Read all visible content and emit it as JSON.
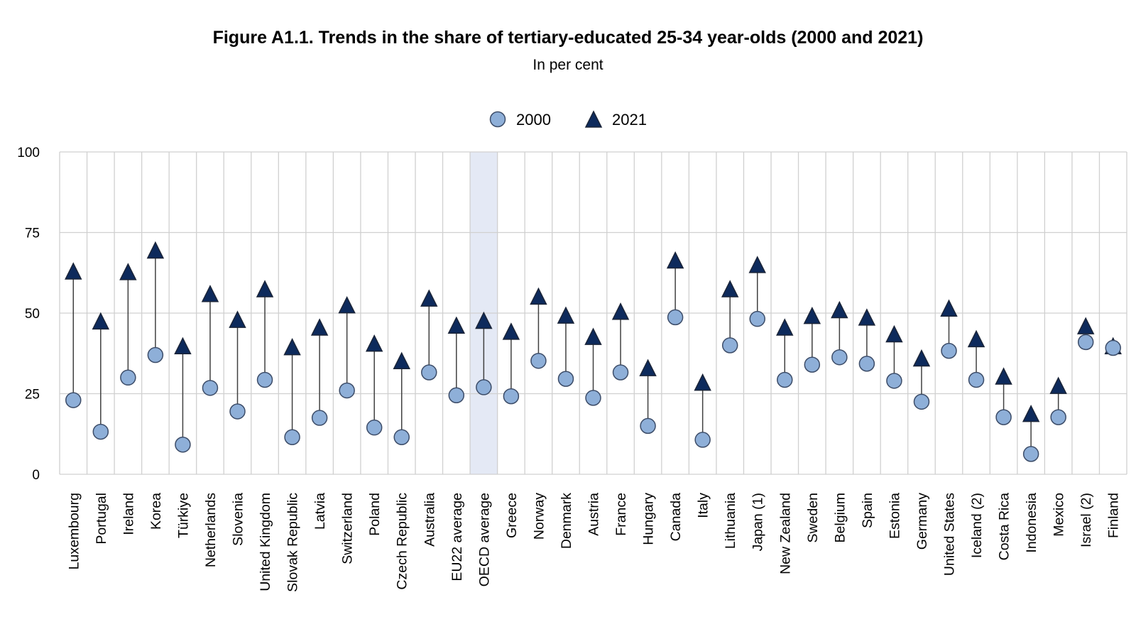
{
  "chart_data": {
    "type": "scatter",
    "title": "Figure A1.1. Trends in the share of tertiary-educated 25-34 year-olds (2000 and 2021)",
    "subtitle": "In per cent",
    "ylim": [
      0,
      100
    ],
    "yticks": [
      "0",
      "25",
      "50",
      "75",
      "100"
    ],
    "ytick_values": [
      0,
      25,
      50,
      75,
      100
    ],
    "grid": true,
    "legend_position": "top-center",
    "highlighted_category": "OECD average",
    "colors": {
      "marker_fill": "#8eafd8",
      "marker_edge": "#3c4c68",
      "triangle_fill": "#0d2a5c",
      "triangle_edge": "#1a2438",
      "connector": "#404040",
      "grid": "#d0d0d0",
      "highlight": "#e4e9f5"
    },
    "categories": [
      "Luxembourg",
      "Portugal",
      "Ireland",
      "Korea",
      "Türkiye",
      "Netherlands",
      "Slovenia",
      "United Kingdom",
      "Slovak Republic",
      "Latvia",
      "Switzerland",
      "Poland",
      "Czech Republic",
      "Australia",
      "EU22 average",
      "OECD average",
      "Greece",
      "Norway",
      "Denmark",
      "Austria",
      "France",
      "Hungary",
      "Canada",
      "Italy",
      "Lithuania",
      "Japan (1)",
      "New Zealand",
      "Sweden",
      "Belgium",
      "Spain",
      "Estonia",
      "Germany",
      "United States",
      "Iceland (2)",
      "Costa Rica",
      "Indonesia",
      "Mexico",
      "Israel (2)",
      "Finland"
    ],
    "series": [
      {
        "name": "2000",
        "marker": "circle",
        "values": [
          23.0,
          13.2,
          30.0,
          37.0,
          9.2,
          26.8,
          19.5,
          29.3,
          11.5,
          17.5,
          26.0,
          14.5,
          11.5,
          31.6,
          24.5,
          27.0,
          24.2,
          35.2,
          29.6,
          23.7,
          31.6,
          15.0,
          48.7,
          10.7,
          40.0,
          48.2,
          29.3,
          34.0,
          36.3,
          34.3,
          29.0,
          22.5,
          38.3,
          29.3,
          17.7,
          6.3,
          17.7,
          41.0,
          39.2
        ]
      },
      {
        "name": "2021",
        "marker": "triangle",
        "values": [
          63.0,
          47.5,
          62.8,
          69.5,
          39.8,
          56.0,
          48.0,
          57.5,
          39.5,
          45.6,
          52.5,
          40.6,
          35.2,
          54.6,
          46.2,
          47.7,
          44.3,
          55.2,
          49.3,
          42.7,
          50.5,
          33.0,
          66.4,
          28.5,
          57.5,
          65.0,
          45.6,
          49.2,
          51.0,
          48.7,
          43.5,
          36.0,
          51.5,
          42.0,
          30.4,
          18.8,
          27.5,
          46.0,
          39.8
        ]
      }
    ]
  }
}
